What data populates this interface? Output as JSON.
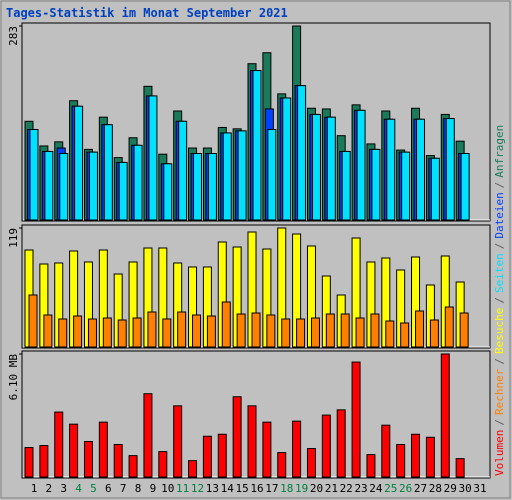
{
  "chart_data": [
    {
      "type": "bar",
      "title": "Tages-Statistik im Monat September 2021",
      "ylim": [
        0,
        283
      ],
      "yticks": [
        283
      ],
      "series": [
        {
          "name": "Anfragen",
          "color": "#1a7a5a",
          "values": [
            144,
            108,
            114,
            174,
            103,
            150,
            91,
            120,
            195,
            96,
            159,
            105,
            105,
            135,
            133,
            228,
            244,
            184,
            283,
            163,
            162,
            123,
            168,
            111,
            159,
            102,
            163,
            94,
            154,
            115,
            0
          ]
        },
        {
          "name": "Dateien",
          "color": "#0040ff",
          "values": [
            132,
            100,
            105,
            166,
            99,
            139,
            84,
            109,
            181,
            82,
            144,
            97,
            97,
            127,
            130,
            218,
            162,
            178,
            196,
            154,
            150,
            100,
            160,
            103,
            147,
            99,
            147,
            90,
            148,
            97,
            0
          ]
        },
        {
          "name": "Seiten",
          "color": "#00e0ff",
          "values": [
            132,
            100,
            97,
            166,
            99,
            139,
            84,
            109,
            181,
            82,
            144,
            97,
            97,
            127,
            130,
            218,
            132,
            178,
            196,
            154,
            150,
            100,
            160,
            103,
            147,
            99,
            147,
            90,
            148,
            97,
            0
          ]
        }
      ]
    },
    {
      "type": "bar",
      "ylim": [
        0,
        119
      ],
      "yticks": [
        119
      ],
      "series": [
        {
          "name": "Besuche",
          "color": "#ffff00",
          "values": [
            97,
            83,
            84,
            96,
            85,
            97,
            73,
            85,
            99,
            99,
            84,
            80,
            80,
            105,
            100,
            115,
            98,
            119,
            113,
            101,
            71,
            52,
            109,
            85,
            89,
            77,
            90,
            62,
            91,
            65,
            0
          ]
        },
        {
          "name": "Rechner",
          "color": "#ff8000",
          "values": [
            52,
            32,
            28,
            31,
            28,
            29,
            27,
            29,
            35,
            28,
            35,
            32,
            31,
            45,
            33,
            34,
            32,
            28,
            28,
            29,
            33,
            33,
            29,
            33,
            26,
            24,
            36,
            27,
            40,
            34,
            0
          ]
        }
      ]
    },
    {
      "type": "bar",
      "ylim": [
        0,
        6.1
      ],
      "yticks": [
        {
          "value": 6.1,
          "label": "6.10 MB"
        }
      ],
      "categories": [
        "1",
        "2",
        "3",
        "4",
        "5",
        "6",
        "7",
        "8",
        "9",
        "10",
        "11",
        "12",
        "13",
        "14",
        "15",
        "16",
        "17",
        "18",
        "19",
        "20",
        "21",
        "22",
        "23",
        "24",
        "25",
        "26",
        "27",
        "28",
        "29",
        "30",
        "31"
      ],
      "category_colors": [
        "#000000",
        "#000000",
        "#000000",
        "#008040",
        "#008040",
        "#000000",
        "#000000",
        "#000000",
        "#000000",
        "#000000",
        "#008040",
        "#008040",
        "#000000",
        "#000000",
        "#000000",
        "#000000",
        "#000000",
        "#008040",
        "#008040",
        "#000000",
        "#000000",
        "#000000",
        "#000000",
        "#000000",
        "#008040",
        "#008040",
        "#000000",
        "#000000",
        "#000000",
        "#000000",
        "#000000"
      ],
      "legend_separator": "/",
      "series": [
        {
          "name": "Volumen",
          "color": "#ff0000",
          "values": [
            1.46,
            1.56,
            3.22,
            2.62,
            1.76,
            2.72,
            1.61,
            1.06,
            4.13,
            1.26,
            3.53,
            0.81,
            2.02,
            2.12,
            3.98,
            3.53,
            2.72,
            1.21,
            2.77,
            1.41,
            3.07,
            3.33,
            5.7,
            1.11,
            2.57,
            1.61,
            2.12,
            1.97,
            6.1,
            0.91,
            0
          ]
        }
      ]
    }
  ]
}
